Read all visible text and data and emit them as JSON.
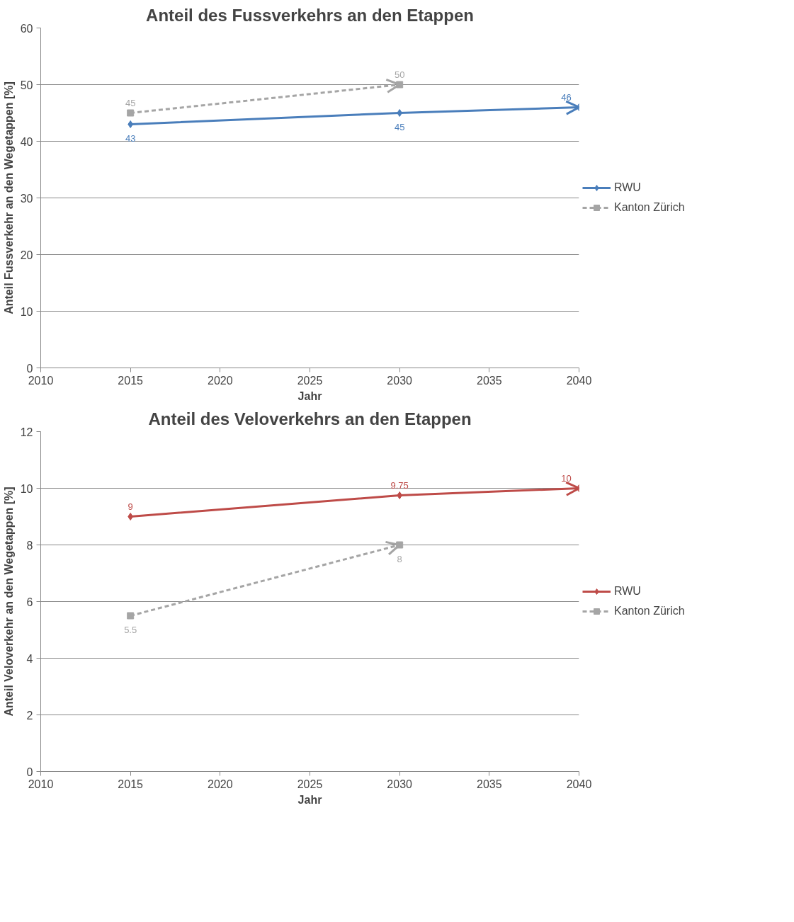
{
  "chart_data": [
    {
      "type": "line",
      "title": "Anteil des Fussverkehrs an den Etappen",
      "xlabel": "Jahr",
      "ylabel": "Anteil Fussverkehr an den Wegetappen [%]",
      "xlim": [
        2010,
        2040
      ],
      "xticks": [
        2010,
        2015,
        2020,
        2025,
        2030,
        2035,
        2040
      ],
      "ylim": [
        0,
        60
      ],
      "yticks": [
        0,
        10,
        20,
        30,
        40,
        50,
        60
      ],
      "grid": "y",
      "legend": "right",
      "data_labels": true,
      "series": [
        {
          "name": "RWU",
          "color": "#4a7ebb",
          "x": [
            2015,
            2030,
            2040
          ],
          "values": [
            43,
            45,
            46
          ],
          "marker": "diamond",
          "line_style": "solid"
        },
        {
          "name": "Kanton Zürich",
          "color": "#a5a5a5",
          "x": [
            2015,
            2030
          ],
          "values": [
            45,
            50
          ],
          "marker": "square",
          "line_style": "dashed"
        }
      ]
    },
    {
      "type": "line",
      "title": "Anteil des Veloverkehrs an den Etappen",
      "xlabel": "Jahr",
      "ylabel": "Anteil Veloverkehr an den Wegetappen [%]",
      "xlim": [
        2010,
        2040
      ],
      "xticks": [
        2010,
        2015,
        2020,
        2025,
        2030,
        2035,
        2040
      ],
      "ylim": [
        0,
        12
      ],
      "yticks": [
        0,
        2,
        4,
        6,
        8,
        10,
        12
      ],
      "grid": "y",
      "legend": "right",
      "data_labels": true,
      "series": [
        {
          "name": "RWU",
          "color": "#be4b48",
          "x": [
            2015,
            2030,
            2040
          ],
          "values": [
            9,
            9.75,
            10
          ],
          "marker": "diamond",
          "line_style": "solid"
        },
        {
          "name": "Kanton Zürich",
          "color": "#a5a5a5",
          "x": [
            2015,
            2030
          ],
          "values": [
            5.5,
            8
          ],
          "marker": "square",
          "line_style": "dashed"
        }
      ]
    }
  ]
}
